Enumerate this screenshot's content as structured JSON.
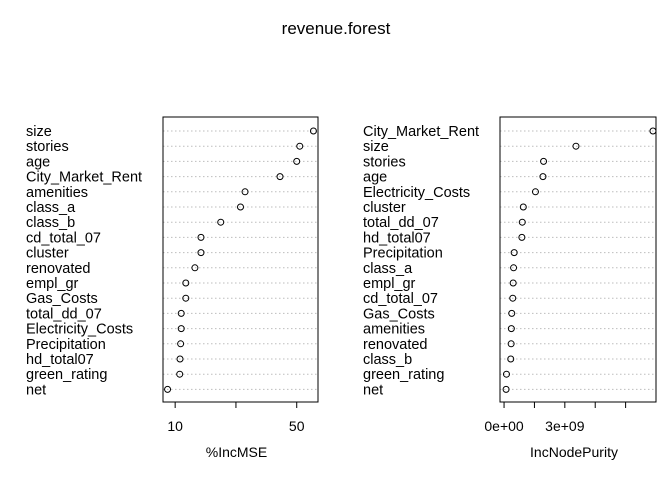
{
  "title": "revenue.forest",
  "chart_data": [
    {
      "type": "scatter",
      "xlabel": "%IncMSE",
      "xlim": [
        6,
        57
      ],
      "xticks": [
        10,
        30,
        50
      ],
      "xtick_labels": [
        "10",
        "",
        "50"
      ],
      "categories": [
        "size",
        "stories",
        "age",
        "City_Market_Rent",
        "amenities",
        "class_a",
        "class_b",
        "cd_total_07",
        "cluster",
        "renovated",
        "empl_gr",
        "Gas_Costs",
        "total_dd_07",
        "Electricity_Costs",
        "Precipitation",
        "hd_total07",
        "green_rating",
        "net"
      ],
      "values": [
        55.5,
        51,
        50,
        44.5,
        33,
        31.5,
        25,
        18.5,
        18.5,
        16.5,
        13.5,
        13.5,
        12,
        12,
        11.8,
        11.6,
        11.5,
        7.5
      ]
    },
    {
      "type": "scatter",
      "xlabel": "IncNodePurity",
      "xlim": [
        -200000000.0,
        7500000000.0
      ],
      "xticks": [
        0,
        1500000000.0,
        3000000000.0,
        4500000000.0,
        6000000000.0
      ],
      "xtick_labels": [
        "0e+00",
        "",
        "3e+09",
        "",
        ""
      ],
      "categories": [
        "City_Market_Rent",
        "size",
        "stories",
        "age",
        "Electricity_Costs",
        "cluster",
        "total_dd_07",
        "hd_total07",
        "Precipitation",
        "class_a",
        "empl_gr",
        "cd_total_07",
        "Gas_Costs",
        "amenities",
        "renovated",
        "class_b",
        "green_rating",
        "net"
      ],
      "values": [
        7350000000.0,
        3550000000.0,
        1950000000.0,
        1920000000.0,
        1550000000.0,
        950000000.0,
        900000000.0,
        880000000.0,
        500000000.0,
        470000000.0,
        450000000.0,
        430000000.0,
        380000000.0,
        360000000.0,
        350000000.0,
        330000000.0,
        120000000.0,
        100000000.0
      ]
    }
  ]
}
